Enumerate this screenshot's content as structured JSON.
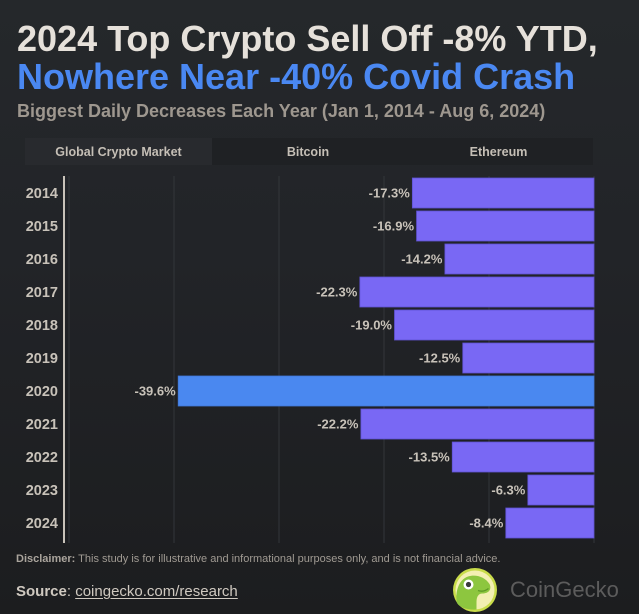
{
  "header": {
    "title_line1": "2024 Top Crypto Sell Off -8% YTD,",
    "title_line2": "Nowhere Near -40% Covid Crash",
    "subtitle": "Biggest Daily Decreases Each Year (Jan 1, 2014 - Aug 6, 2024)"
  },
  "tabs": [
    {
      "label": "Global Crypto Market",
      "active": true
    },
    {
      "label": "Bitcoin",
      "active": false
    },
    {
      "label": "Ethereum",
      "active": false
    }
  ],
  "chart_data": {
    "type": "bar",
    "orientation": "horizontal",
    "title": "Biggest Daily Decreases Each Year (Global Crypto Market)",
    "xlabel": "",
    "ylabel": "",
    "categories": [
      "2014",
      "2015",
      "2016",
      "2017",
      "2018",
      "2019",
      "2020",
      "2021",
      "2022",
      "2023",
      "2024"
    ],
    "values": [
      -17.3,
      -16.9,
      -14.2,
      -22.3,
      -19.0,
      -12.5,
      -39.6,
      -22.2,
      -13.5,
      -6.3,
      -8.4
    ],
    "value_labels": [
      "-17.3%",
      "-16.9%",
      "-14.2%",
      "-22.3%",
      "-19.0%",
      "-12.5%",
      "-39.6%",
      "-22.2%",
      "-13.5%",
      "-6.3%",
      "-8.4%"
    ],
    "unit": "%",
    "highlight_category": "2020",
    "xlim": [
      -50,
      0
    ],
    "x_gridlines": [
      -50,
      -40,
      -30,
      -20,
      -10,
      0
    ],
    "grid": true,
    "legend": "none",
    "colors": {
      "default": "#7968f4",
      "highlight": "#4a88f0"
    }
  },
  "footer": {
    "disclaimer_label": "Disclaimer:",
    "disclaimer_text": " This study is for illustrative and informational purposes only, and is not financial advice.",
    "source_label": "Source",
    "source_sep": ": ",
    "source_link": "coingecko.com/research",
    "brand": "CoinGecko",
    "brand_icon": "coingecko-gecko-logo"
  },
  "colors": {
    "title": "#e6e1da",
    "title_accent": "#4a88f2",
    "subtitle": "#9e978f",
    "bar": "#7968f4",
    "bar_highlight": "#4a88f0"
  }
}
